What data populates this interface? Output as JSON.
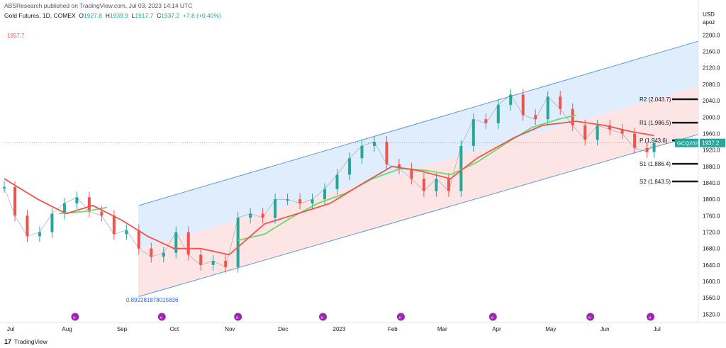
{
  "header": {
    "published": "ABSResearch published on TradingView.com, Jul 03, 2023 14:14 UTC",
    "symbol": "Gold Futures, 1D, COMEX",
    "ohlc": {
      "O": "1927.8",
      "H": "1939.9",
      "L": "1917.7",
      "C": "1937.2",
      "change": "+7.8 (+0.40%)"
    }
  },
  "footer": {
    "brand": "TradingView",
    "logo_icon": "tradingview-logo-icon"
  },
  "colors": {
    "up": "#26a69a",
    "down": "#ef5350",
    "ma_fast": "#66dd66",
    "ma_slow": "#ef5350",
    "channel": "#5b9bd5",
    "upper_fill": "#dbeafb",
    "lower_fill": "#fde0e0"
  },
  "chart_data": {
    "type": "candlestick",
    "currency": "USD",
    "unit": "apoz",
    "ylim": [
      1500,
      2230
    ],
    "yticks": [
      2200.0,
      2160.0,
      2120.0,
      2080.0,
      2040.0,
      2000.0,
      1960.0,
      1920.0,
      1880.0,
      1840.0,
      1800.0,
      1760.0,
      1720.0,
      1680.0,
      1640.0,
      1600.0,
      1560.0,
      1520.0
    ],
    "xlabels": [
      "Jul",
      "Aug",
      "Sep",
      "Oct",
      "Nov",
      "Dec",
      "2023",
      "Feb",
      "Mar",
      "Apr",
      "May",
      "Jun",
      "Jul"
    ],
    "xlim": [
      "2022-07-01",
      "2023-07-28"
    ],
    "x_label_dates": [
      "2022-07-01",
      "2022-08-01",
      "2022-09-01",
      "2022-10-01",
      "2022-11-01",
      "2022-12-01",
      "2023-01-01",
      "2023-02-01",
      "2023-03-01",
      "2023-04-01",
      "2023-05-01",
      "2023-06-01",
      "2023-07-01"
    ],
    "last_price": "1937.2",
    "ticker_badge": "GCQ2023",
    "high_marker": "1957.7",
    "channel_label": "0.892281878015836",
    "channel": {
      "upper": [
        [
          "2022-09-15",
          1785
        ],
        [
          "2023-07-28",
          2185
        ]
      ],
      "mid": [
        [
          "2022-09-15",
          1680
        ],
        [
          "2023-07-28",
          2075
        ]
      ],
      "lower": [
        [
          "2022-09-15",
          1563
        ],
        [
          "2023-07-28",
          1958
        ]
      ]
    },
    "pivots": [
      {
        "label": "R2 (2,043.7)",
        "value": 2043.7
      },
      {
        "label": "R1 (1,986.5)",
        "value": 1986.5
      },
      {
        "label": "P (1,943.6)",
        "value": 1943.6
      },
      {
        "label": "S1 (1,886.4)",
        "value": 1886.4
      },
      {
        "label": "S2 (1,843.5)",
        "value": 1843.5
      }
    ],
    "event_markers": [
      "2022-08-10",
      "2022-09-28",
      "2022-11-10",
      "2022-12-28",
      "2023-02-10",
      "2023-04-03",
      "2023-05-28",
      "2023-07-01"
    ],
    "series": [
      {
        "name": "Gold Futures",
        "points": [
          [
            "2022-07-01",
            1830
          ],
          [
            "2022-07-07",
            1760
          ],
          [
            "2022-07-14",
            1710
          ],
          [
            "2022-07-21",
            1720
          ],
          [
            "2022-07-28",
            1765
          ],
          [
            "2022-08-04",
            1790
          ],
          [
            "2022-08-11",
            1805
          ],
          [
            "2022-08-18",
            1770
          ],
          [
            "2022-08-25",
            1760
          ],
          [
            "2022-09-01",
            1715
          ],
          [
            "2022-09-08",
            1725
          ],
          [
            "2022-09-15",
            1680
          ],
          [
            "2022-09-22",
            1660
          ],
          [
            "2022-09-29",
            1670
          ],
          [
            "2022-10-06",
            1720
          ],
          [
            "2022-10-13",
            1665
          ],
          [
            "2022-10-20",
            1640
          ],
          [
            "2022-10-27",
            1650
          ],
          [
            "2022-11-03",
            1635
          ],
          [
            "2022-11-10",
            1755
          ],
          [
            "2022-11-17",
            1765
          ],
          [
            "2022-11-24",
            1755
          ],
          [
            "2022-12-01",
            1800
          ],
          [
            "2022-12-08",
            1800
          ],
          [
            "2022-12-15",
            1790
          ],
          [
            "2022-12-22",
            1800
          ],
          [
            "2022-12-29",
            1825
          ],
          [
            "2023-01-05",
            1860
          ],
          [
            "2023-01-12",
            1900
          ],
          [
            "2023-01-19",
            1930
          ],
          [
            "2023-01-26",
            1940
          ],
          [
            "2023-02-02",
            1885
          ],
          [
            "2023-02-09",
            1875
          ],
          [
            "2023-02-16",
            1850
          ],
          [
            "2023-02-23",
            1820
          ],
          [
            "2023-03-02",
            1850
          ],
          [
            "2023-03-09",
            1820
          ],
          [
            "2023-03-16",
            1930
          ],
          [
            "2023-03-23",
            1995
          ],
          [
            "2023-03-30",
            1985
          ],
          [
            "2023-04-06",
            2030
          ],
          [
            "2023-04-13",
            2055
          ],
          [
            "2023-04-20",
            2005
          ],
          [
            "2023-04-27",
            1995
          ],
          [
            "2023-05-04",
            2050
          ],
          [
            "2023-05-11",
            2020
          ],
          [
            "2023-05-18",
            1980
          ],
          [
            "2023-05-25",
            1945
          ],
          [
            "2023-06-01",
            1980
          ],
          [
            "2023-06-08",
            1970
          ],
          [
            "2023-06-15",
            1960
          ],
          [
            "2023-06-22",
            1925
          ],
          [
            "2023-06-29",
            1915
          ],
          [
            "2023-07-03",
            1937.2
          ]
        ]
      },
      {
        "name": "MA fast",
        "points": [
          [
            "2022-08-01",
            1765
          ],
          [
            "2022-08-15",
            1770
          ],
          [
            "2022-08-28",
            1780
          ],
          [
            "2022-09-15",
            null
          ],
          [
            "2022-11-10",
            1700
          ],
          [
            "2022-11-25",
            1715
          ],
          [
            "2022-12-10",
            1755
          ],
          [
            "2022-12-25",
            1790
          ],
          [
            "2023-01-10",
            1815
          ],
          [
            "2023-01-25",
            1850
          ],
          [
            "2023-02-10",
            1875
          ],
          [
            "2023-02-25",
            1870
          ],
          [
            "2023-03-10",
            1860
          ],
          [
            "2023-03-25",
            1890
          ],
          [
            "2023-04-10",
            1935
          ],
          [
            "2023-04-25",
            1975
          ],
          [
            "2023-05-10",
            1995
          ],
          [
            "2023-05-20",
            2005
          ]
        ]
      },
      {
        "name": "MA slow",
        "points": [
          [
            "2022-07-01",
            1850
          ],
          [
            "2022-07-20",
            1800
          ],
          [
            "2022-08-05",
            1765
          ],
          [
            "2022-08-20",
            1785
          ],
          [
            "2022-09-05",
            1750
          ],
          [
            "2022-09-20",
            1710
          ],
          [
            "2022-10-05",
            1680
          ],
          [
            "2022-10-20",
            1680
          ],
          [
            "2022-11-05",
            1665
          ],
          [
            "2022-11-25",
            1740
          ],
          [
            "2022-12-10",
            1760
          ],
          [
            "2023-01-01",
            1790
          ],
          [
            "2023-01-20",
            1840
          ],
          [
            "2023-02-05",
            1880
          ],
          [
            "2023-02-20",
            1870
          ],
          [
            "2023-03-10",
            1850
          ],
          [
            "2023-03-25",
            1900
          ],
          [
            "2023-04-15",
            1950
          ],
          [
            "2023-05-01",
            1980
          ],
          [
            "2023-05-20",
            1990
          ],
          [
            "2023-06-05",
            1980
          ],
          [
            "2023-06-20",
            1965
          ],
          [
            "2023-07-03",
            1955
          ]
        ]
      }
    ]
  }
}
